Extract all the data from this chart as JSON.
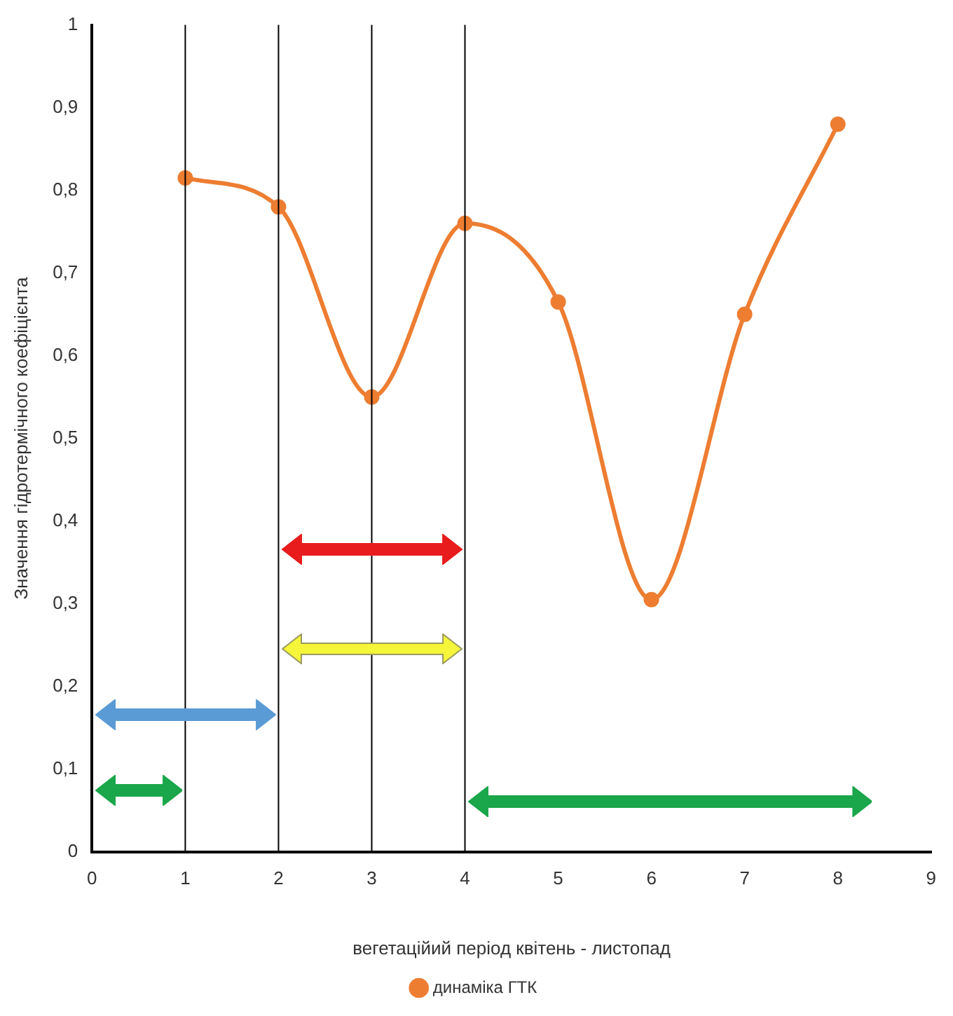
{
  "chart_data": {
    "type": "line",
    "xlabel": "вегетаційий період квітень - листопад",
    "ylabel": "Значення гідротермічного коефіцієнта",
    "x": [
      1,
      2,
      3,
      4,
      5,
      6,
      7,
      8
    ],
    "series": [
      {
        "name": "динаміка ГТК",
        "color": "#ed7d31",
        "values": [
          0.815,
          0.78,
          0.55,
          0.76,
          0.665,
          0.305,
          0.65,
          0.88
        ]
      }
    ],
    "xlim": [
      0,
      9
    ],
    "xticks": [
      0,
      1,
      2,
      3,
      4,
      5,
      6,
      7,
      8,
      9
    ],
    "ylim": [
      0,
      1
    ],
    "yticks": [
      0,
      {
        "value": 0.1,
        "label": "0,1"
      },
      {
        "value": 0.2,
        "label": "0,2"
      },
      {
        "value": 0.3,
        "label": "0,3"
      },
      {
        "value": 0.4,
        "label": "0,4"
      },
      {
        "value": 0.5,
        "label": "0,5"
      },
      {
        "value": 0.6,
        "label": "0,6"
      },
      {
        "value": 0.7,
        "label": "0,7"
      },
      {
        "value": 0.8,
        "label": "0,8"
      },
      {
        "value": 0.9,
        "label": "0,9"
      },
      1
    ],
    "ref_lines": [
      {
        "axis": "x",
        "value": 1,
        "color": "#000000"
      },
      {
        "axis": "x",
        "value": 2,
        "color": "#000000"
      },
      {
        "axis": "x",
        "value": 3,
        "color": "#000000"
      },
      {
        "axis": "x",
        "value": 4,
        "color": "#000000"
      }
    ],
    "grid": false,
    "legend": "bottom",
    "marker": "circle",
    "line_style": "solid"
  }
}
